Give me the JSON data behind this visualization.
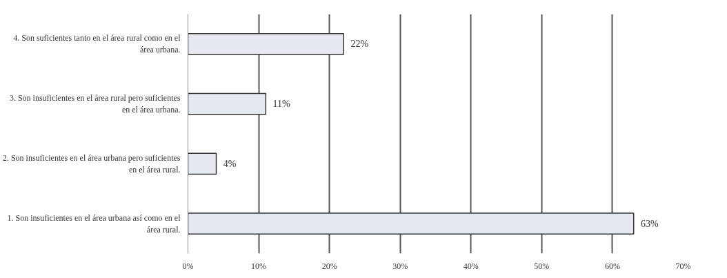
{
  "chart_data": {
    "type": "bar",
    "orientation": "horizontal",
    "categories": [
      "4. Son suficientes tanto en el área rural como en el área urbana.",
      "3. Son insuficientes en el área rural pero suficientes en el área urbana.",
      "2. Son insuficientes en el área urbana pero suficientes en el área rural.",
      "1. Son insuficientes en el área urbana así como en el área rural."
    ],
    "values": [
      22,
      11,
      4,
      63
    ],
    "color": "#e6e9f0",
    "value_labels": [
      "22%",
      "11%",
      "4%",
      "63%"
    ],
    "xlim": [
      0,
      70
    ],
    "xticks": [
      {
        "value": 0,
        "label": "0%"
      },
      {
        "value": 10,
        "label": "10%"
      },
      {
        "value": 20,
        "label": "20%"
      },
      {
        "value": 30,
        "label": "30%"
      },
      {
        "value": 40,
        "label": "40%"
      },
      {
        "value": 50,
        "label": "50%"
      },
      {
        "value": 60,
        "label": "60%"
      },
      {
        "value": 70,
        "label": "70%"
      }
    ],
    "grid": "x"
  }
}
